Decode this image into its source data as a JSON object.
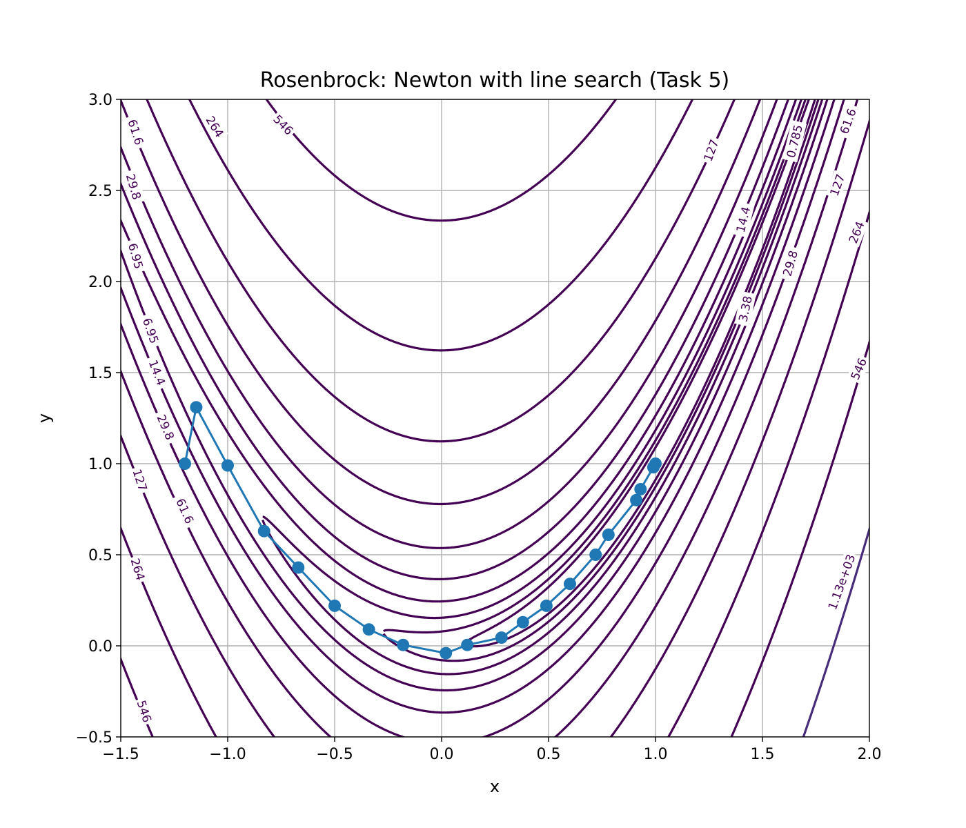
{
  "chart_data": {
    "type": "line",
    "subtype": "contour",
    "title": "Rosenbrock: Newton with line search (Task 5)",
    "xlabel": "x",
    "ylabel": "y",
    "xlim": [
      -1.5,
      2.0
    ],
    "ylim": [
      -0.5,
      3.0
    ],
    "x_ticks": [
      -1.5,
      -1.0,
      -0.5,
      0.0,
      0.5,
      1.0,
      1.5,
      2.0
    ],
    "y_ticks": [
      -0.5,
      0.0,
      0.5,
      1.0,
      1.5,
      2.0,
      2.5,
      3.0
    ],
    "x_tick_labels": [
      "−1.5",
      "−1.0",
      "−0.5",
      "0.0",
      "0.5",
      "1.0",
      "1.5",
      "2.0"
    ],
    "y_tick_labels": [
      "−0.5",
      "0.0",
      "0.5",
      "1.0",
      "1.5",
      "2.0",
      "2.5",
      "3.0"
    ],
    "grid": true,
    "contour_levels": [
      0.785,
      1.62,
      3.38,
      6.95,
      14.4,
      29.8,
      61.6,
      127,
      264,
      546,
      1130
    ],
    "contour_labels": [
      {
        "text": "61.6",
        "x": -1.43,
        "y": 2.82,
        "rot": 72
      },
      {
        "text": "264",
        "x": -1.06,
        "y": 2.85,
        "rot": 58
      },
      {
        "text": "546",
        "x": -0.74,
        "y": 2.86,
        "rot": 46
      },
      {
        "text": "29.8",
        "x": -1.44,
        "y": 2.52,
        "rot": 74
      },
      {
        "text": "6.95",
        "x": -1.43,
        "y": 2.14,
        "rot": 74
      },
      {
        "text": "6.95",
        "x": -1.36,
        "y": 1.73,
        "rot": 71
      },
      {
        "text": "14.4",
        "x": -1.33,
        "y": 1.5,
        "rot": 69
      },
      {
        "text": "29.8",
        "x": -1.29,
        "y": 1.2,
        "rot": 67
      },
      {
        "text": "127",
        "x": -1.41,
        "y": 0.91,
        "rot": 72
      },
      {
        "text": "61.6",
        "x": -1.2,
        "y": 0.74,
        "rot": 66
      },
      {
        "text": "264",
        "x": -1.42,
        "y": 0.42,
        "rot": 73
      },
      {
        "text": "546",
        "x": -1.39,
        "y": -0.36,
        "rot": 72
      },
      {
        "text": "127",
        "x": 1.26,
        "y": 2.72,
        "rot": -70
      },
      {
        "text": "14.4",
        "x": 1.41,
        "y": 2.34,
        "rot": -76
      },
      {
        "text": "3.38",
        "x": 1.42,
        "y": 1.85,
        "rot": -78
      },
      {
        "text": "29.8",
        "x": 1.63,
        "y": 2.1,
        "rot": -74
      },
      {
        "text": "127",
        "x": 1.85,
        "y": 2.53,
        "rot": -70
      },
      {
        "text": "264",
        "x": 1.94,
        "y": 2.27,
        "rot": -68
      },
      {
        "text": "61.6",
        "x": 1.9,
        "y": 2.88,
        "rot": -70
      },
      {
        "text": "0.785",
        "x": 1.65,
        "y": 2.77,
        "rot": -76
      },
      {
        "text": "546",
        "x": 1.95,
        "y": 1.52,
        "rot": -66
      },
      {
        "text": "1.13e+03",
        "x": 1.87,
        "y": 0.35,
        "rot": -70
      }
    ],
    "series": [
      {
        "x": [
          -1.2,
          -1.147,
          -1.0,
          -0.83,
          -0.67,
          -0.5,
          -0.34,
          -0.18,
          0.02,
          0.12,
          0.28,
          0.38,
          0.49,
          0.6,
          0.72,
          0.78,
          0.91,
          0.93,
          0.99,
          1.0
        ],
        "y": [
          1.0,
          1.31,
          0.99,
          0.63,
          0.43,
          0.22,
          0.09,
          0.005,
          -0.04,
          0.005,
          0.045,
          0.13,
          0.22,
          0.34,
          0.5,
          0.61,
          0.8,
          0.86,
          0.98,
          1.0
        ]
      }
    ],
    "colors": {
      "path": "#1f77b4",
      "contour": "#440154",
      "contour_outer": "#472c7a",
      "grid": "#b0b0b0"
    }
  }
}
